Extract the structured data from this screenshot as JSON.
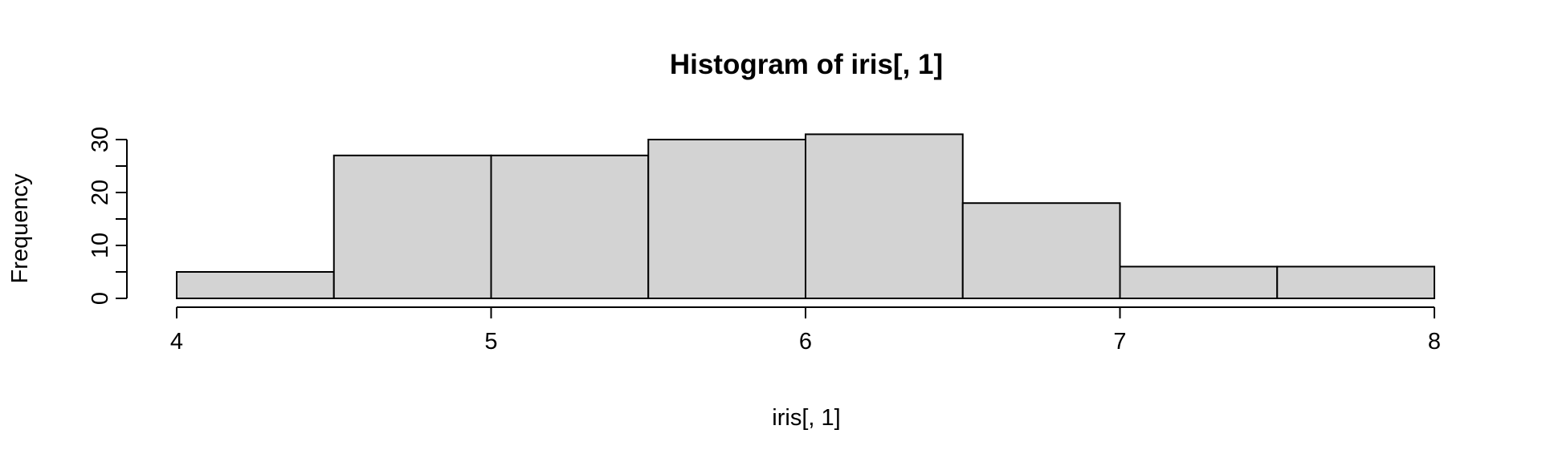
{
  "chart_data": {
    "type": "bar",
    "subtype": "histogram",
    "title": "Histogram of iris[, 1]",
    "xlabel": "iris[, 1]",
    "ylabel": "Frequency",
    "bins": [
      {
        "from": 4.0,
        "to": 4.5,
        "count": 5
      },
      {
        "from": 4.5,
        "to": 5.0,
        "count": 27
      },
      {
        "from": 5.0,
        "to": 5.5,
        "count": 27
      },
      {
        "from": 5.5,
        "to": 6.0,
        "count": 30
      },
      {
        "from": 6.0,
        "to": 6.5,
        "count": 31
      },
      {
        "from": 6.5,
        "to": 7.0,
        "count": 18
      },
      {
        "from": 7.0,
        "to": 7.5,
        "count": 6
      },
      {
        "from": 7.5,
        "to": 8.0,
        "count": 6
      }
    ],
    "xlim": [
      4,
      8
    ],
    "ylim": [
      0,
      31
    ],
    "x_ticks": [
      "4",
      "5",
      "6",
      "7",
      "8"
    ],
    "y_ticks": [
      "0",
      "10",
      "20",
      "30"
    ],
    "y_minor_ticks": [
      5,
      15,
      25
    ],
    "bar_fill": "#d3d3d3",
    "bar_stroke": "#000000",
    "grid": false,
    "legend": "none"
  }
}
